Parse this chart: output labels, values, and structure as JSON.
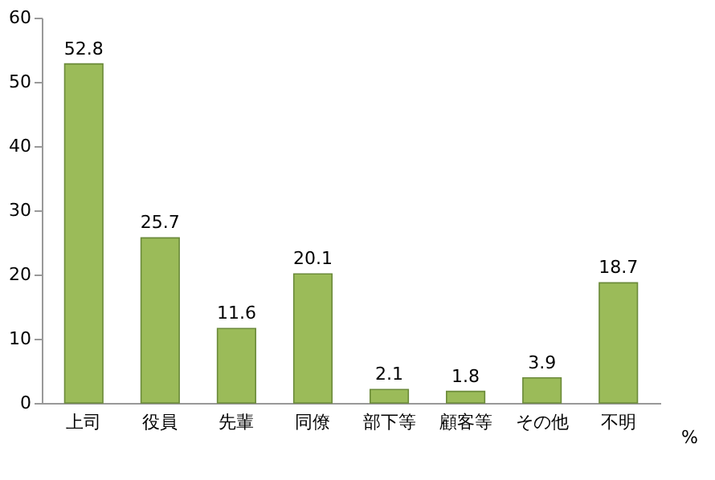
{
  "chart_data": {
    "type": "bar",
    "categories": [
      "上司",
      "役員",
      "先輩",
      "同僚",
      "部下等",
      "顧客等",
      "その他",
      "不明"
    ],
    "values": [
      52.8,
      25.7,
      11.6,
      20.1,
      2.1,
      1.8,
      3.9,
      18.7
    ],
    "color": "#9bbb59",
    "ylim": [
      0,
      60
    ],
    "yticks": [
      0,
      10,
      20,
      30,
      40,
      50,
      60
    ],
    "data_labels": true,
    "grid": false,
    "annotations": [
      "%"
    ]
  }
}
